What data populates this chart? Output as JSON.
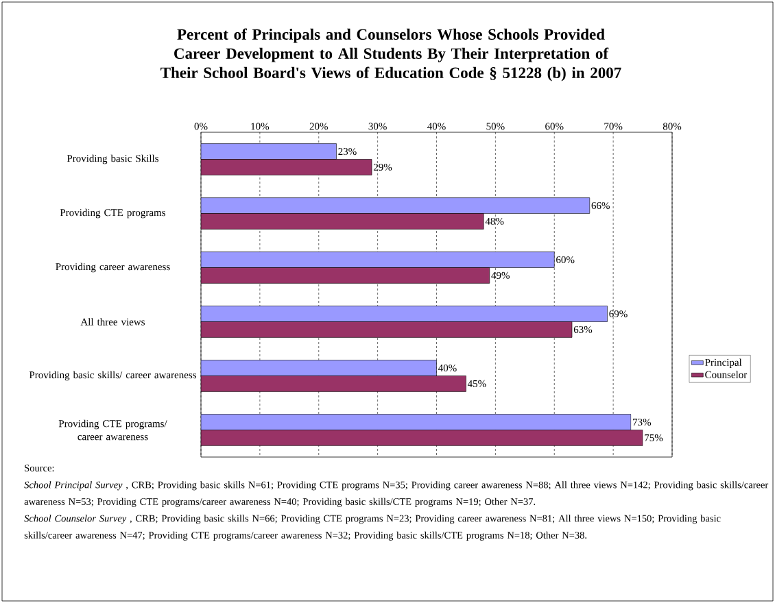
{
  "chart_data": {
    "type": "bar",
    "orientation": "horizontal",
    "title": "Percent of Principals and Counselors Whose Schools Provided Career Development to All Students By Their Interpretation of Their School Board's Views of Education Code § 51228 (b) in 2007",
    "categories": [
      "Providing basic Skills",
      "Providing CTE programs",
      "Providing career awareness",
      "All three views",
      "Providing basic skills/ career awareness",
      "Providing CTE programs/ career awareness"
    ],
    "series": [
      {
        "name": "Principal",
        "color": "#9999ff",
        "values": [
          23,
          66,
          60,
          69,
          40,
          73
        ],
        "value_labels": [
          "23%",
          "66%",
          "60%",
          "69%",
          "40%",
          "73%"
        ]
      },
      {
        "name": "Counselor",
        "color": "#993366",
        "values": [
          29,
          48,
          49,
          63,
          45,
          75
        ],
        "value_labels": [
          "29%",
          "48%",
          "49%",
          "63%",
          "45%",
          "75%"
        ]
      }
    ],
    "xlim": [
      0,
      80
    ],
    "xticks": [
      {
        "value": 0,
        "label": "0%"
      },
      {
        "value": 10,
        "label": "10%"
      },
      {
        "value": 20,
        "label": "20%"
      },
      {
        "value": 30,
        "label": "30%"
      },
      {
        "value": 40,
        "label": "40%"
      },
      {
        "value": 50,
        "label": "50%"
      },
      {
        "value": 60,
        "label": "60%"
      },
      {
        "value": 70,
        "label": "70%"
      },
      {
        "value": 80,
        "label": "80%"
      }
    ],
    "grid": "x",
    "legend": "right",
    "annotations": [
      "Source:",
      "*School Principal Survey* , CRB; Providing basic skills N=61; Providing CTE programs N=35; Providing career awareness N=88; All three views N=142; Providing basic skills/career awareness N=53; Providing CTE programs/career awareness N=40; Providing basic skills/CTE programs N=19; Other N=37.",
      "*School Counselor Survey* , CRB; Providing basic skills N=66; Providing CTE programs N=23; Providing career awareness N=81; All three views N=150; Providing basic skills/career awareness N=47; Providing CTE programs/career awareness N=32; Providing basic skills/CTE programs N=18; Other N=38."
    ]
  }
}
